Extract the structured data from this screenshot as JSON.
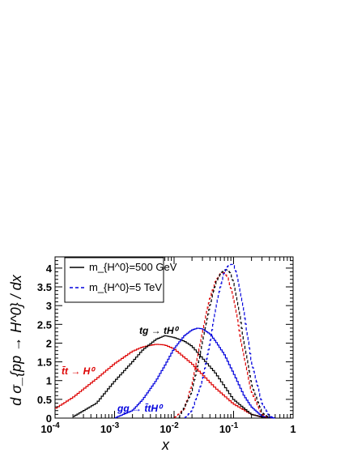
{
  "chart_data": {
    "type": "line",
    "xlabel": "x",
    "ylabel": "d σ_{pp → H^0} / dx",
    "xscale": "log",
    "xlim": [
      0.0001,
      1
    ],
    "ylim": [
      0,
      4.3
    ],
    "grid": false,
    "x_tick_labels": [
      {
        "v": 0.0001,
        "base": "10",
        "exp": "-4"
      },
      {
        "v": 0.001,
        "base": "10",
        "exp": "-3"
      },
      {
        "v": 0.01,
        "base": "10",
        "exp": "-2"
      },
      {
        "v": 0.1,
        "base": "10",
        "exp": "-1"
      },
      {
        "v": 1,
        "base": "1",
        "exp": ""
      }
    ],
    "y_tick_labels": [
      "0",
      "0.5",
      "1",
      "1.5",
      "2",
      "2.5",
      "3",
      "3.5",
      "4"
    ],
    "legend": {
      "placement": "top-left",
      "entries": [
        {
          "style": "solid",
          "label": "m_{H^0}=500 GeV"
        },
        {
          "style": "dashed",
          "label": "m_{H^0}=5 TeV"
        }
      ]
    },
    "annotations": [
      {
        "text": "tg → tH⁰",
        "color": "#000000"
      },
      {
        "text": "t̄t → H⁰",
        "color": "#dd0000"
      },
      {
        "text": "gg → t̄tH⁰",
        "color": "#0000dd"
      }
    ],
    "series": [
      {
        "process": "ttbar",
        "mass": "500 GeV",
        "style": "solid",
        "color": "#dd0000",
        "x": [
          0.0001,
          0.0002,
          0.0005,
          0.001,
          0.002,
          0.003,
          0.005,
          0.007,
          0.01,
          0.02,
          0.05,
          0.1,
          0.2,
          0.3,
          0.5
        ],
        "y": [
          0.25,
          0.55,
          1.05,
          1.45,
          1.78,
          1.9,
          1.97,
          1.95,
          1.85,
          1.45,
          0.8,
          0.38,
          0.1,
          0.03,
          0.0
        ]
      },
      {
        "process": "tg",
        "mass": "500 GeV",
        "style": "solid",
        "color": "#000000",
        "x": [
          0.0002,
          0.0005,
          0.001,
          0.002,
          0.003,
          0.005,
          0.007,
          0.01,
          0.015,
          0.02,
          0.03,
          0.05,
          0.1,
          0.2,
          0.3,
          0.5
        ],
        "y": [
          0.03,
          0.4,
          0.98,
          1.5,
          1.82,
          2.1,
          2.2,
          2.15,
          2.05,
          1.92,
          1.6,
          1.2,
          0.5,
          0.1,
          0.03,
          0.0
        ]
      },
      {
        "process": "gg",
        "mass": "500 GeV",
        "style": "solid",
        "color": "#0000dd",
        "x": [
          0.001,
          0.002,
          0.003,
          0.005,
          0.007,
          0.01,
          0.015,
          0.02,
          0.025,
          0.03,
          0.04,
          0.05,
          0.07,
          0.1,
          0.15,
          0.2,
          0.3,
          0.5
        ],
        "y": [
          0.0,
          0.2,
          0.5,
          1.0,
          1.4,
          1.85,
          2.2,
          2.35,
          2.4,
          2.38,
          2.25,
          2.05,
          1.7,
          1.2,
          0.6,
          0.3,
          0.05,
          0.0
        ]
      },
      {
        "process": "ttbar",
        "mass": "5 TeV",
        "style": "dashed",
        "color": "#dd0000",
        "x": [
          0.01,
          0.015,
          0.02,
          0.03,
          0.04,
          0.05,
          0.06,
          0.07,
          0.08,
          0.1,
          0.12,
          0.15,
          0.2,
          0.3,
          0.4
        ],
        "y": [
          0.0,
          0.25,
          0.9,
          2.3,
          3.2,
          3.65,
          3.85,
          3.88,
          3.75,
          3.2,
          2.5,
          1.6,
          0.7,
          0.1,
          0.0
        ]
      },
      {
        "process": "tg",
        "mass": "5 TeV",
        "style": "dashed",
        "color": "#000000",
        "x": [
          0.012,
          0.02,
          0.03,
          0.04,
          0.05,
          0.06,
          0.07,
          0.08,
          0.09,
          0.1,
          0.12,
          0.15,
          0.2,
          0.3,
          0.4
        ],
        "y": [
          0.0,
          0.7,
          2.0,
          3.0,
          3.6,
          3.85,
          3.95,
          3.95,
          3.85,
          3.6,
          3.0,
          2.0,
          0.9,
          0.15,
          0.0
        ]
      },
      {
        "process": "gg",
        "mass": "5 TeV",
        "style": "dashed",
        "color": "#0000dd",
        "x": [
          0.015,
          0.02,
          0.03,
          0.04,
          0.05,
          0.06,
          0.07,
          0.08,
          0.09,
          0.1,
          0.11,
          0.12,
          0.15,
          0.2,
          0.3,
          0.4,
          0.5
        ],
        "y": [
          0.0,
          0.2,
          1.0,
          2.0,
          2.9,
          3.5,
          3.9,
          4.05,
          4.1,
          4.1,
          3.9,
          3.6,
          2.8,
          1.5,
          0.4,
          0.05,
          0.0
        ]
      }
    ]
  }
}
